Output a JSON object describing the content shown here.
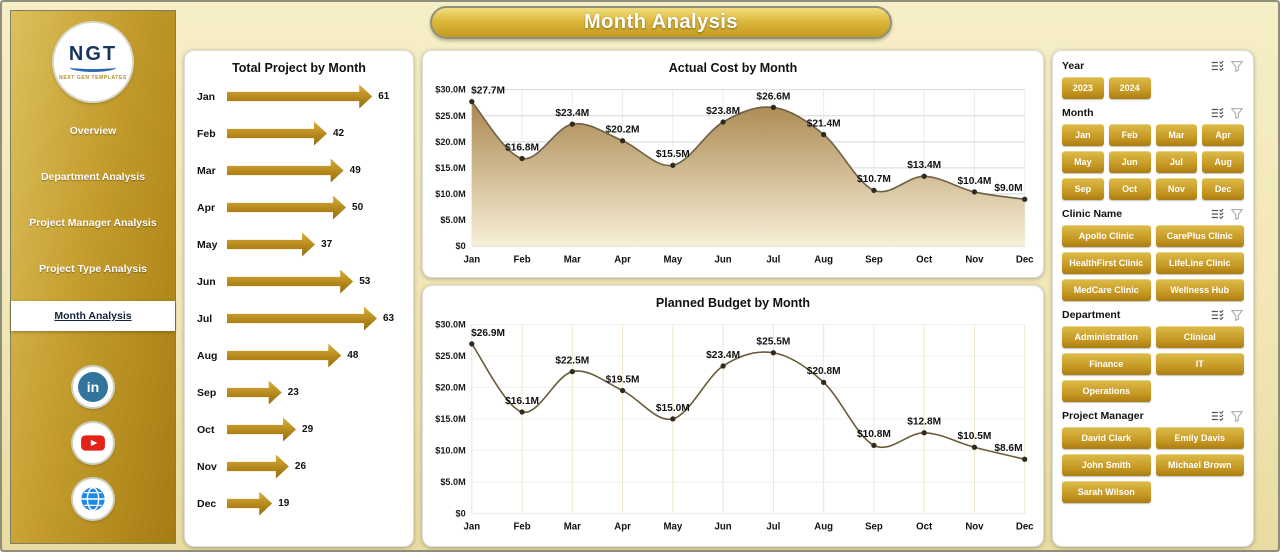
{
  "header": {
    "title": "Month Analysis"
  },
  "sidebar": {
    "logo": {
      "text": "NGT",
      "subtext": "NEXT GEN TEMPLATES"
    },
    "items": [
      {
        "label": "Overview",
        "active": false
      },
      {
        "label": "Department Analysis",
        "active": false
      },
      {
        "label": "Project Manager Analysis",
        "active": false
      },
      {
        "label": "Project Type Analysis",
        "active": false
      },
      {
        "label": "Month Analysis",
        "active": true
      }
    ],
    "social": [
      "linkedin",
      "youtube",
      "website"
    ]
  },
  "colors": {
    "accent_gold": "#c49a2c",
    "button_gradient_top": "#ddbc49",
    "button_gradient_bottom": "#aa7d12",
    "linkedin_blue": "#32749c",
    "youtube_red": "#e62117",
    "globe_blue": "#1e88e5"
  },
  "chart_data": [
    {
      "type": "bar",
      "orientation": "horizontal",
      "title": "Total Project by Month",
      "categories": [
        "Jan",
        "Feb",
        "Mar",
        "Apr",
        "May",
        "Jun",
        "Jul",
        "Aug",
        "Sep",
        "Oct",
        "Nov",
        "Dec"
      ],
      "values": [
        61,
        42,
        49,
        50,
        37,
        53,
        63,
        48,
        23,
        29,
        26,
        19
      ],
      "xlim": [
        0,
        63
      ]
    },
    {
      "type": "area",
      "title": "Actual Cost by Month",
      "categories": [
        "Jan",
        "Feb",
        "Mar",
        "Apr",
        "May",
        "Jun",
        "Jul",
        "Aug",
        "Sep",
        "Oct",
        "Nov",
        "Dec"
      ],
      "values": [
        27.7,
        16.8,
        23.4,
        20.2,
        15.5,
        23.8,
        26.6,
        21.4,
        10.7,
        13.4,
        10.4,
        9.0
      ],
      "labels": [
        "$27.7M",
        "$16.8M",
        "$23.4M",
        "$20.2M",
        "$15.5M",
        "$23.8M",
        "$26.6M",
        "$21.4M",
        "$10.7M",
        "$13.4M",
        "$10.4M",
        "$9.0M"
      ],
      "yticks": [
        "$30.0M",
        "$25.0M",
        "$20.0M",
        "$15.0M",
        "$10.0M",
        "$5.0M",
        "$0"
      ],
      "ylim": [
        0,
        30
      ]
    },
    {
      "type": "line",
      "title": "Planned Budget by Month",
      "categories": [
        "Jan",
        "Feb",
        "Mar",
        "Apr",
        "May",
        "Jun",
        "Jul",
        "Aug",
        "Sep",
        "Oct",
        "Nov",
        "Dec"
      ],
      "values": [
        26.9,
        16.1,
        22.5,
        19.5,
        15.0,
        23.4,
        25.5,
        20.8,
        10.8,
        12.8,
        10.5,
        8.6
      ],
      "labels": [
        "$26.9M",
        "$16.1M",
        "$22.5M",
        "$19.5M",
        "$15.0M",
        "$23.4M",
        "$25.5M",
        "$20.8M",
        "$10.8M",
        "$12.8M",
        "$10.5M",
        "$8.6M"
      ],
      "yticks": [
        "$30.0M",
        "$25.0M",
        "$20.0M",
        "$15.0M",
        "$10.0M",
        "$5.0M",
        "$0"
      ],
      "ylim": [
        0,
        30
      ]
    }
  ],
  "filters": {
    "sections": [
      {
        "id": "year",
        "label": "Year",
        "cols": 4,
        "options": [
          "2023",
          "2024"
        ]
      },
      {
        "id": "month",
        "label": "Month",
        "cols": 4,
        "options": [
          "Jan",
          "Feb",
          "Mar",
          "Apr",
          "May",
          "Jun",
          "Jul",
          "Aug",
          "Sep",
          "Oct",
          "Nov",
          "Dec"
        ]
      },
      {
        "id": "clinic-name",
        "label": "Clinic Name",
        "cols": 2,
        "options": [
          "Apollo Clinic",
          "CarePlus Clinic",
          "HealthFirst Clinic",
          "LifeLine Clinic",
          "MedCare Clinic",
          "Wellness Hub"
        ]
      },
      {
        "id": "department",
        "label": "Department",
        "cols": 2,
        "options": [
          "Administration",
          "Clinical",
          "Finance",
          "IT",
          "Operations"
        ]
      },
      {
        "id": "project-manager",
        "label": "Project Manager",
        "cols": 2,
        "options": [
          "David Clark",
          "Emily Davis",
          "John Smith",
          "Michael Brown",
          "Sarah Wilson"
        ]
      }
    ]
  }
}
